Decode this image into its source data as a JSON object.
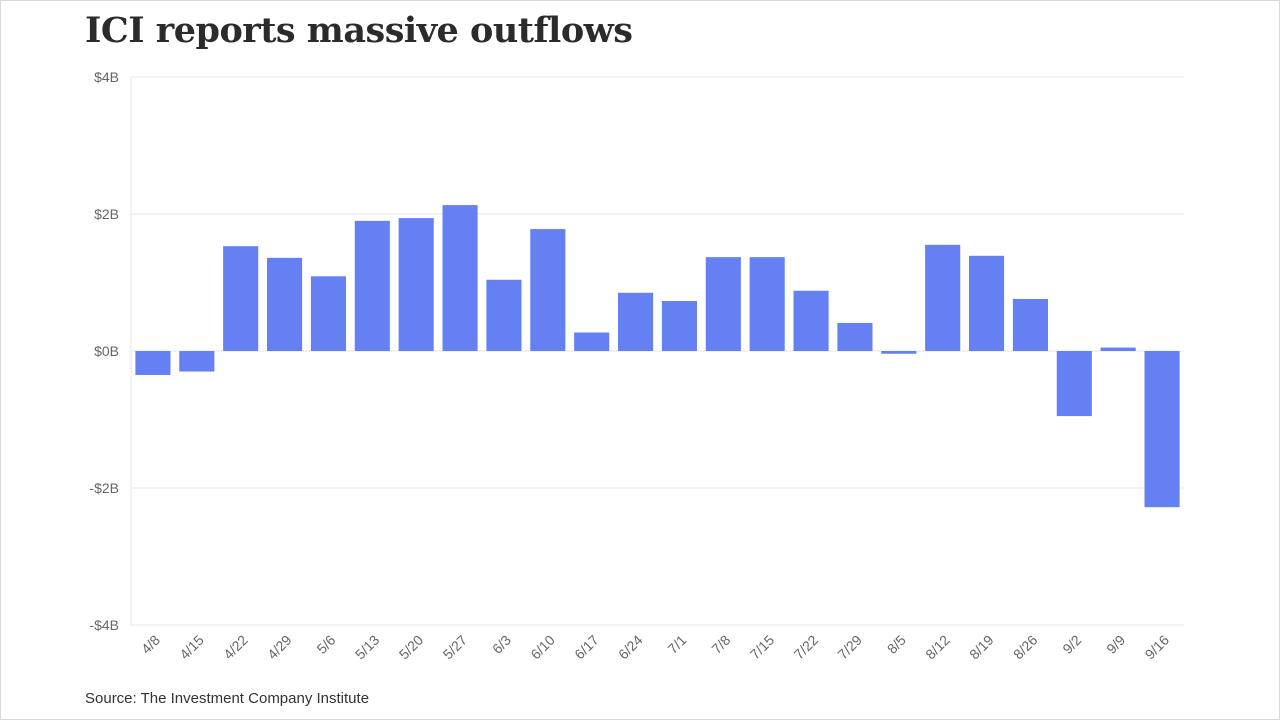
{
  "chart_data": {
    "type": "bar",
    "title": "ICI reports massive outflows",
    "source": "Source: The Investment Company Institute",
    "xlabel": "",
    "ylabel": "",
    "categories": [
      "4/8",
      "4/15",
      "4/22",
      "4/29",
      "5/6",
      "5/13",
      "5/20",
      "5/27",
      "6/3",
      "6/10",
      "6/17",
      "6/24",
      "7/1",
      "7/8",
      "7/15",
      "7/22",
      "7/29",
      "8/5",
      "8/12",
      "8/19",
      "8/26",
      "9/2",
      "9/9",
      "9/16"
    ],
    "series": [
      {
        "values": [
          -0.35,
          -0.3,
          1.53,
          1.36,
          1.09,
          1.9,
          1.94,
          2.13,
          1.04,
          1.78,
          0.27,
          0.85,
          0.73,
          1.37,
          1.37,
          0.88,
          0.41,
          -0.04,
          1.55,
          1.39,
          0.76,
          -0.95,
          0.05,
          -2.28
        ]
      }
    ],
    "ylim": [
      -4,
      4
    ],
    "yticks": [
      4,
      2,
      0,
      -2,
      -4
    ],
    "ytick_labels": [
      "$4B",
      "$2B",
      "$0B",
      "-$2B",
      "-$4B"
    ],
    "grid": true,
    "bar_color": "#6580f3",
    "grid_color": "#e6e6e6"
  }
}
